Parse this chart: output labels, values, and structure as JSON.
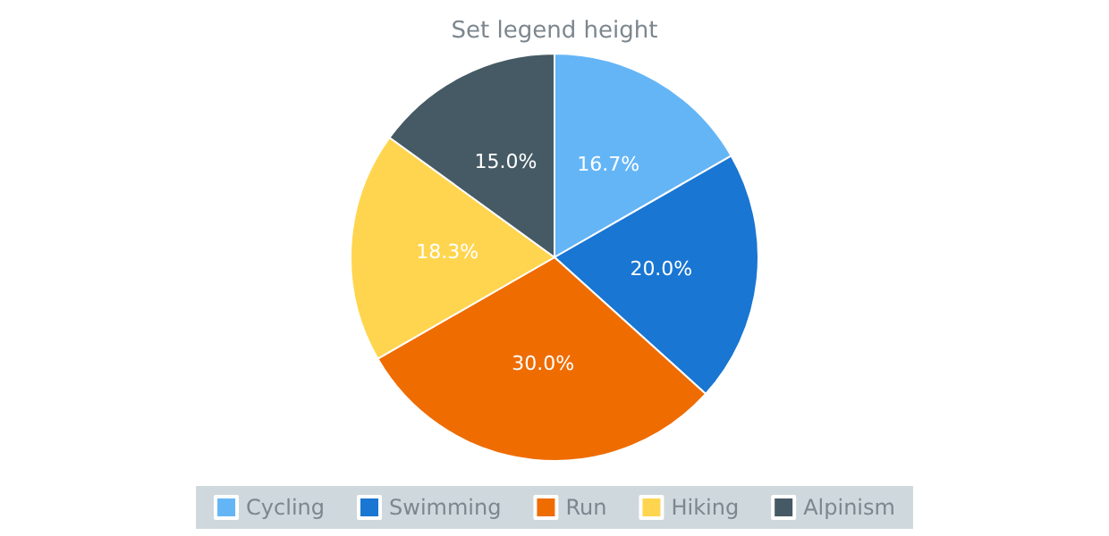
{
  "chart_data": {
    "type": "pie",
    "title": "Set legend height",
    "categories": [
      "Cycling",
      "Swimming",
      "Run",
      "Hiking",
      "Alpinism"
    ],
    "values": [
      16.7,
      20.0,
      30.0,
      18.3,
      15.0
    ],
    "value_labels": [
      "16.7%",
      "20.0%",
      "30.0%",
      "18.3%",
      "15.0%"
    ],
    "colors": [
      "#64b5f6",
      "#1976d2",
      "#ef6c00",
      "#ffd54f",
      "#455a64"
    ],
    "legend": "bottom"
  }
}
